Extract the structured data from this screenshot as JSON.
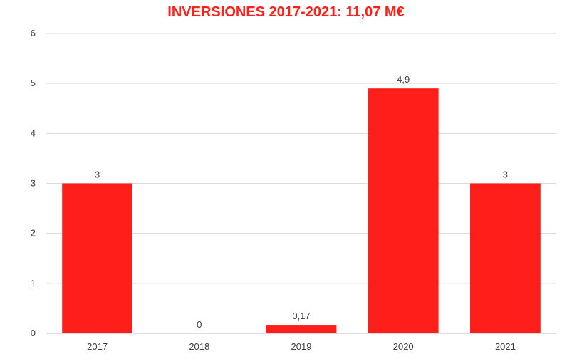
{
  "chart_data": {
    "type": "bar",
    "title": "INVERSIONES 2017-2021: 11,07 M€",
    "categories": [
      "2017",
      "2018",
      "2019",
      "2020",
      "2021"
    ],
    "values": [
      3,
      0,
      0.17,
      4.9,
      3
    ],
    "data_labels": [
      "3",
      "0",
      "0,17",
      "4,9",
      "3"
    ],
    "ylim": [
      0,
      6
    ],
    "y_ticks": [
      0,
      1,
      2,
      3,
      4,
      5,
      6
    ],
    "grid": true,
    "legend": "none",
    "xlabel": "",
    "ylabel": ""
  },
  "colors": {
    "bar": "#ff1f1a",
    "title": "#ff1f1a",
    "grid": "#d9d9d9",
    "axis": "#bfbfbf"
  }
}
